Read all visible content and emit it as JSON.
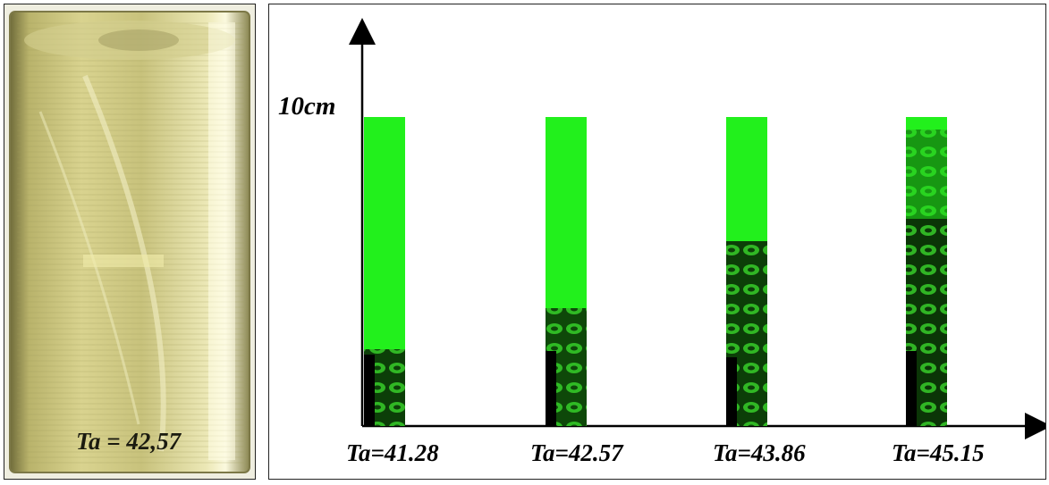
{
  "photo": {
    "label": "Ta = 42,57",
    "colors": {
      "tube": "#c9c26a",
      "highlight": "#f4f1c8",
      "frame": "#8d8a5a"
    }
  },
  "plot": {
    "height_label": "10cm",
    "columns": [
      {
        "label": "Ta=41.28"
      },
      {
        "label": "Ta=42.57"
      },
      {
        "label": "Ta=43.86"
      },
      {
        "label": "Ta=45.15"
      }
    ],
    "colors": {
      "green": "#22f01c",
      "dark": "#061a04",
      "axis": "#000000"
    }
  }
}
